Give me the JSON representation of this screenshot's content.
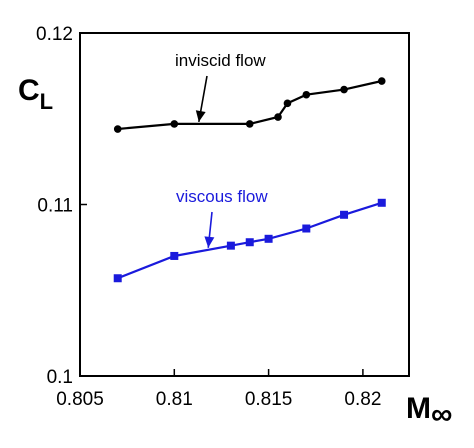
{
  "chart_data": {
    "type": "line",
    "title": "",
    "xlabel": {
      "main": "M",
      "sub": "∞"
    },
    "ylabel": {
      "main": "C",
      "sub": "L"
    },
    "xlim": [
      0.805,
      0.8225
    ],
    "ylim": [
      0.1,
      0.12
    ],
    "x_ticks": [
      0.805,
      0.81,
      0.815,
      0.82
    ],
    "y_ticks": [
      0.1,
      0.11,
      0.12
    ],
    "x_tick_labels": [
      "0.805",
      "0.81",
      "0.815",
      "0.82"
    ],
    "y_tick_labels": [
      "0.1",
      "0.11",
      "0.12"
    ],
    "grid": false,
    "legend": "none",
    "series": [
      {
        "name": "inviscid flow",
        "color": "#000000",
        "marker": "circle",
        "x": [
          0.807,
          0.81,
          0.814,
          0.8155,
          0.816,
          0.817,
          0.819,
          0.821
        ],
        "y": [
          0.1144,
          0.1147,
          0.1147,
          0.1151,
          0.1159,
          0.1164,
          0.1167,
          0.1172
        ]
      },
      {
        "name": "viscous flow",
        "color": "#1a1adc",
        "marker": "square",
        "x": [
          0.807,
          0.81,
          0.813,
          0.814,
          0.815,
          0.817,
          0.819,
          0.821
        ],
        "y": [
          0.1057,
          0.107,
          0.1076,
          0.1078,
          0.108,
          0.1086,
          0.1094,
          0.1101
        ]
      }
    ],
    "annotations": [
      {
        "text": "inviscid flow",
        "series": 0,
        "arrow_to_x": 0.8113
      },
      {
        "text": "viscous flow",
        "series": 1,
        "arrow_to_x": 0.8118
      }
    ]
  }
}
